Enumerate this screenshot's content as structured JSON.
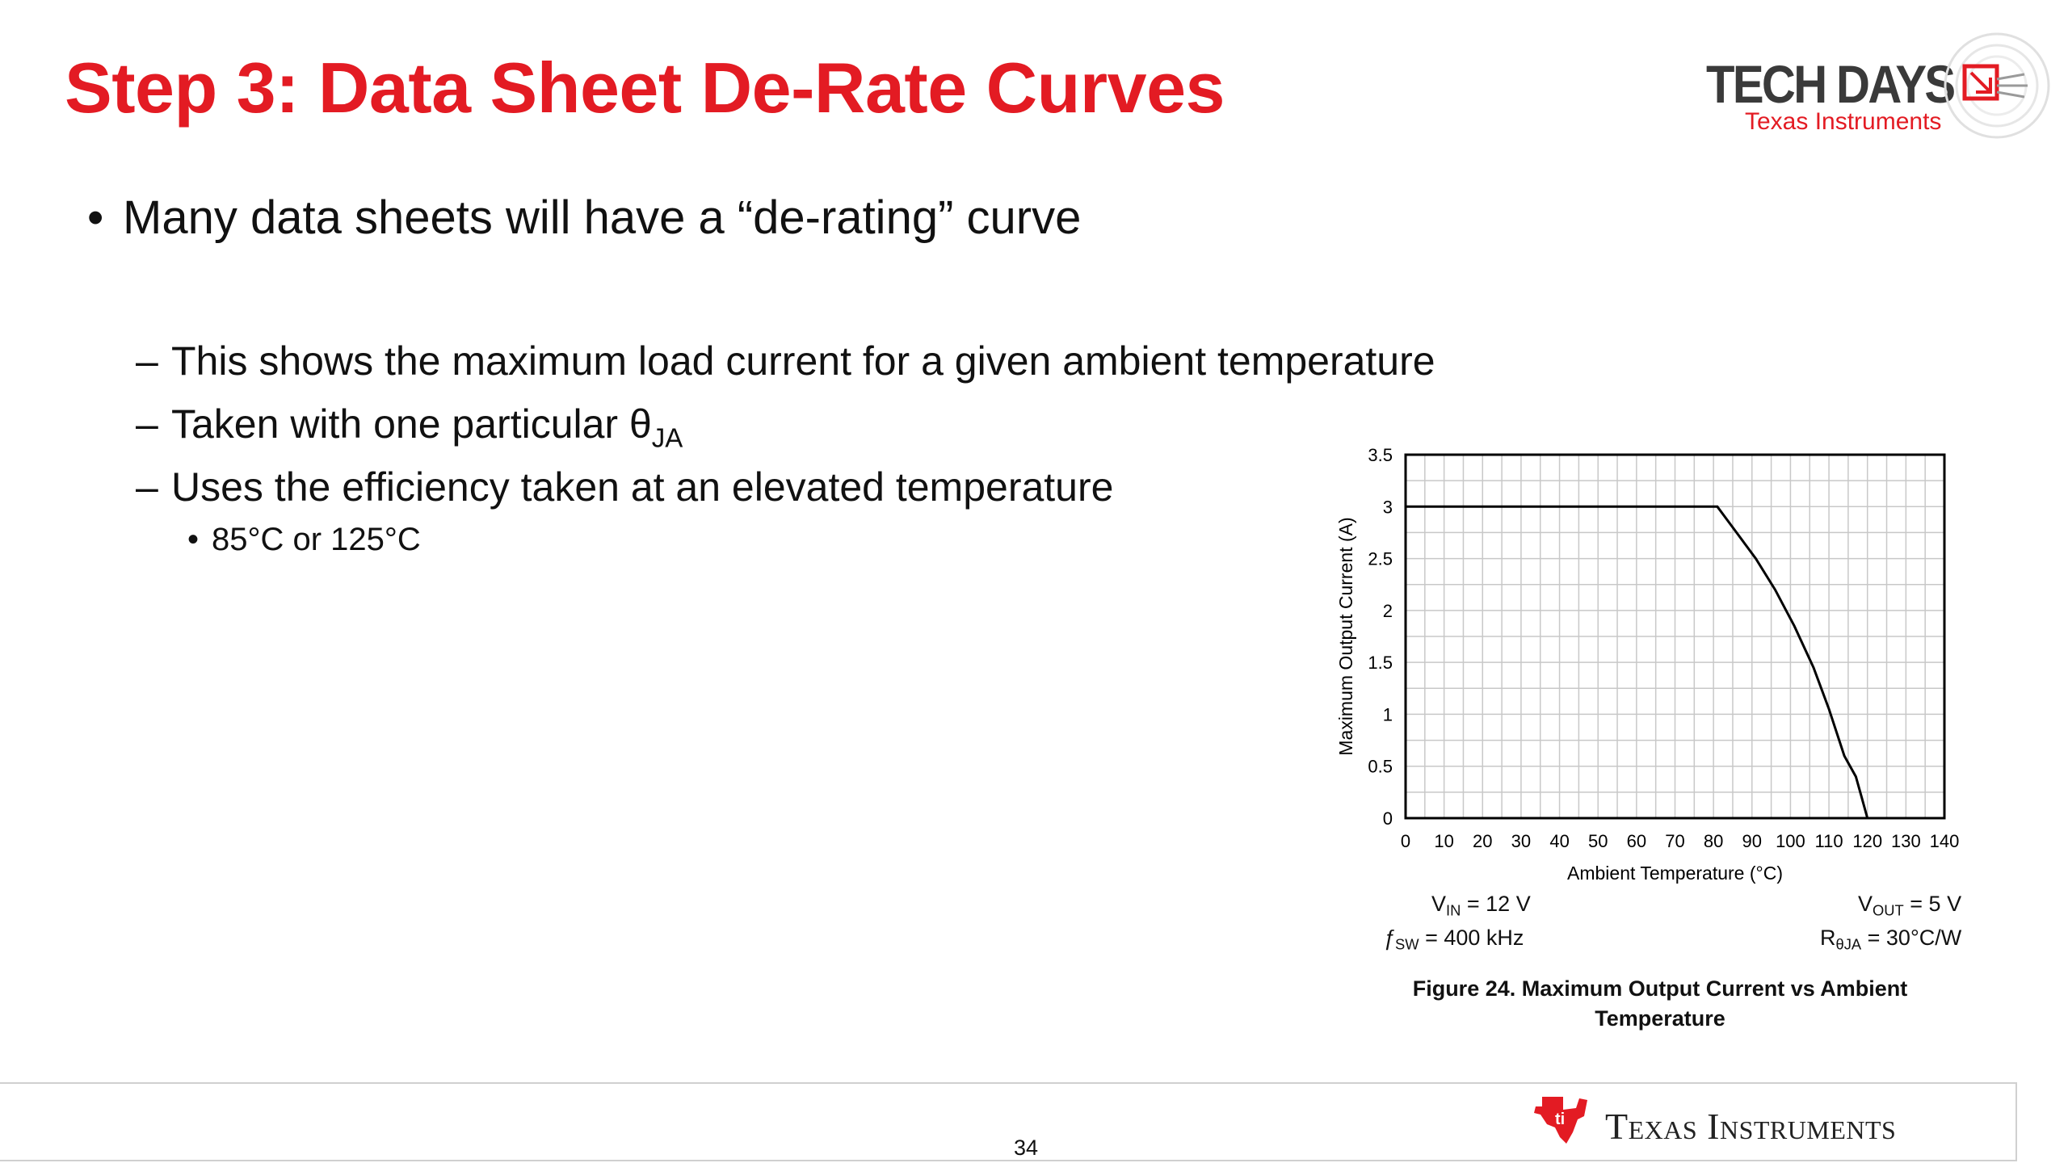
{
  "slide": {
    "title": "Step 3: Data Sheet De-Rate Curves",
    "page_number": "34"
  },
  "logo": {
    "name": "TECH DAYS",
    "subtitle": "Texas Instruments"
  },
  "bullets": {
    "main": {
      "bullet": "•",
      "text": "Many data sheets will have a “de-rating” curve"
    },
    "subs": [
      {
        "dash": "–",
        "text": "This shows the maximum load current for a given ambient temperature"
      },
      {
        "dash": "–",
        "text": "Taken with one particular θ",
        "sub": "JA"
      },
      {
        "dash": "–",
        "text": "Uses the efficiency taken at an elevated temperature"
      }
    ],
    "subsub": {
      "bullet": "•",
      "text": "85°C or 125°C"
    }
  },
  "chart_data": {
    "type": "line",
    "title": "",
    "xlabel": "Ambient Temperature (°C)",
    "ylabel": "Maximum Output Current (A)",
    "xlim": [
      0,
      140
    ],
    "ylim": [
      0,
      3.5
    ],
    "x_ticks": [
      0,
      10,
      20,
      30,
      40,
      50,
      60,
      70,
      80,
      90,
      100,
      110,
      120,
      130,
      140
    ],
    "y_ticks": [
      0,
      0.5,
      1,
      1.5,
      2,
      2.5,
      3,
      3.5
    ],
    "y_tick_labels": [
      "0",
      "0.5",
      "1",
      "1.5",
      "2",
      "2.5",
      "3",
      "3.5"
    ],
    "grid": true,
    "series": [
      {
        "points": [
          [
            0,
            3
          ],
          [
            81,
            3
          ],
          [
            86,
            2.75
          ],
          [
            91,
            2.5
          ],
          [
            96,
            2.2
          ],
          [
            101,
            1.85
          ],
          [
            106,
            1.45
          ],
          [
            110,
            1.05
          ],
          [
            114,
            0.6
          ],
          [
            117,
            0.4
          ],
          [
            118.5,
            0.2
          ],
          [
            120,
            0
          ]
        ]
      }
    ]
  },
  "conditions": {
    "vin_label": "V",
    "vin_sub": "IN",
    "vin_value": " = 12 V",
    "fsw_label": "ƒ",
    "fsw_sub": "SW",
    "fsw_value": " = 400 kHz",
    "vout_label": "V",
    "vout_sub": "OUT",
    "vout_value": " = 5 V",
    "rja_label": "R",
    "rja_sub": "θJA",
    "rja_value": " = 30°C/W"
  },
  "figure_caption": "Figure 24. Maximum Output Current vs Ambient Temperature",
  "footer": {
    "company": "Texas Instruments"
  },
  "colors": {
    "accent": "#e31b23",
    "logo_gray": "#3a3a3a"
  }
}
